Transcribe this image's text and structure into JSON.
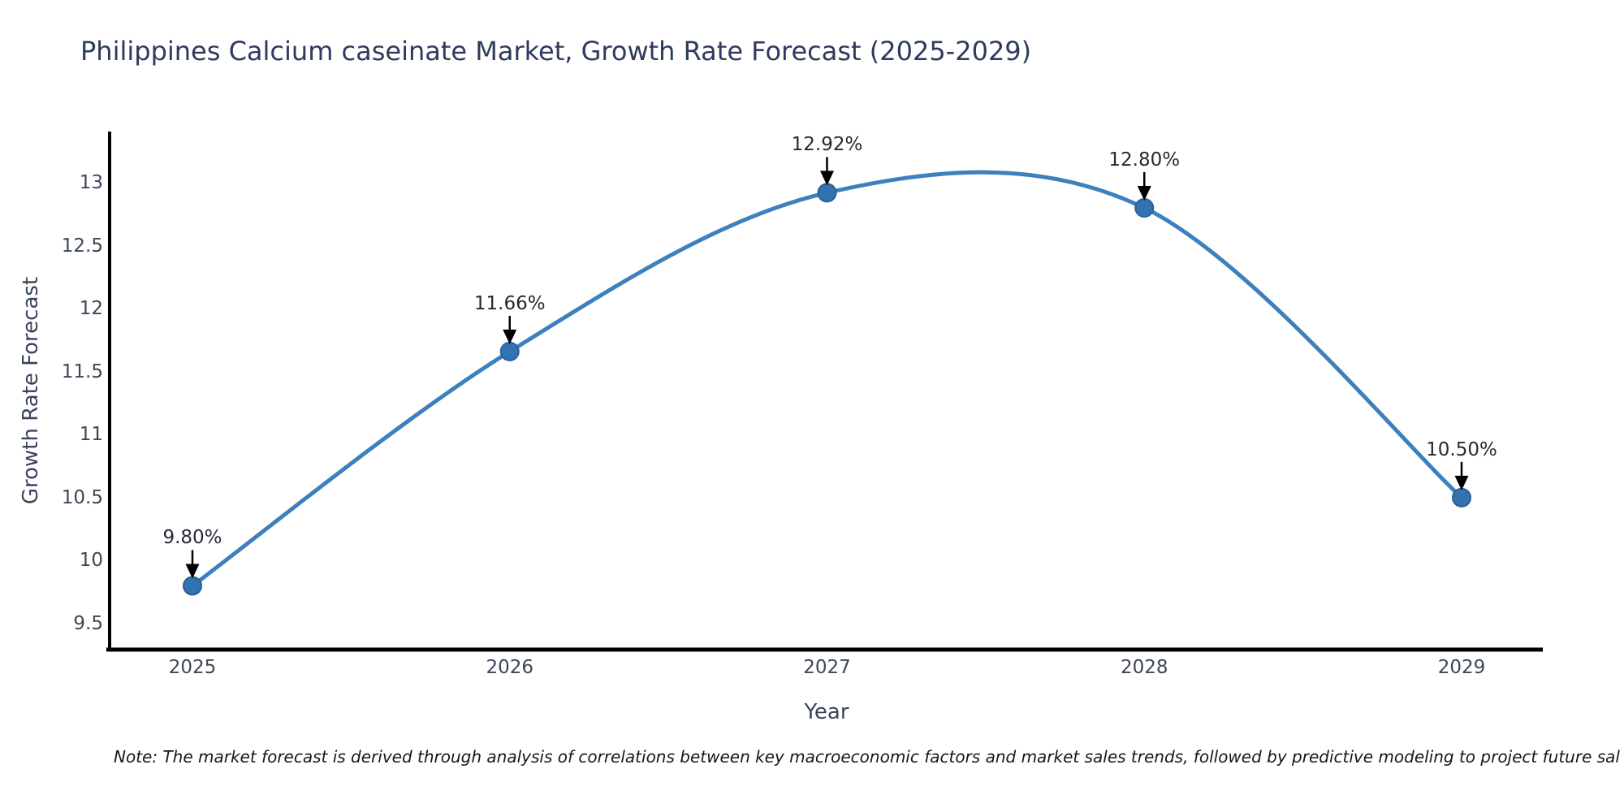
{
  "title": "Philippines Calcium caseinate Market, Growth Rate Forecast (2025-2029)",
  "note": "Note: The market forecast is derived through analysis of correlations between key macroeconomic factors and market sales trends, followed by predictive modeling to project future sal",
  "chart_data": {
    "type": "line",
    "title": "Philippines Calcium caseinate Market, Growth Rate Forecast (2025-2029)",
    "xlabel": "Year",
    "ylabel": "Growth Rate Forecast",
    "x": [
      2025,
      2026,
      2027,
      2028,
      2029
    ],
    "xticklabels": [
      "2025",
      "2026",
      "2027",
      "2028",
      "2029"
    ],
    "values": [
      9.8,
      11.66,
      12.92,
      12.8,
      10.5
    ],
    "point_labels": [
      "9.80%",
      "11.66%",
      "12.92%",
      "12.80%",
      "10.50%"
    ],
    "yticks": {
      "values": [
        13,
        12.5,
        12,
        11.5,
        11,
        10.5,
        10,
        9.5
      ],
      "labels": [
        "13",
        "12.5",
        "12",
        "11.5",
        "11",
        "10.5",
        "10",
        "9.5"
      ]
    },
    "ylim": [
      9.3,
      13.4
    ],
    "xlim": [
      2024.74,
      2029.26
    ],
    "grid": false,
    "legend": false,
    "smooth_spline": true,
    "colors": {
      "line": "#3d80bd",
      "marker_fill": "#3273b2",
      "marker_edge": "#2a6095",
      "arrow": "#000000",
      "axis": "#000000",
      "title_text": "#2e3a5e",
      "tick_text": "#3d4757",
      "axis_label_text": "#3a4559",
      "annotation_text": "#242a33",
      "note_text": "#14181d"
    }
  }
}
